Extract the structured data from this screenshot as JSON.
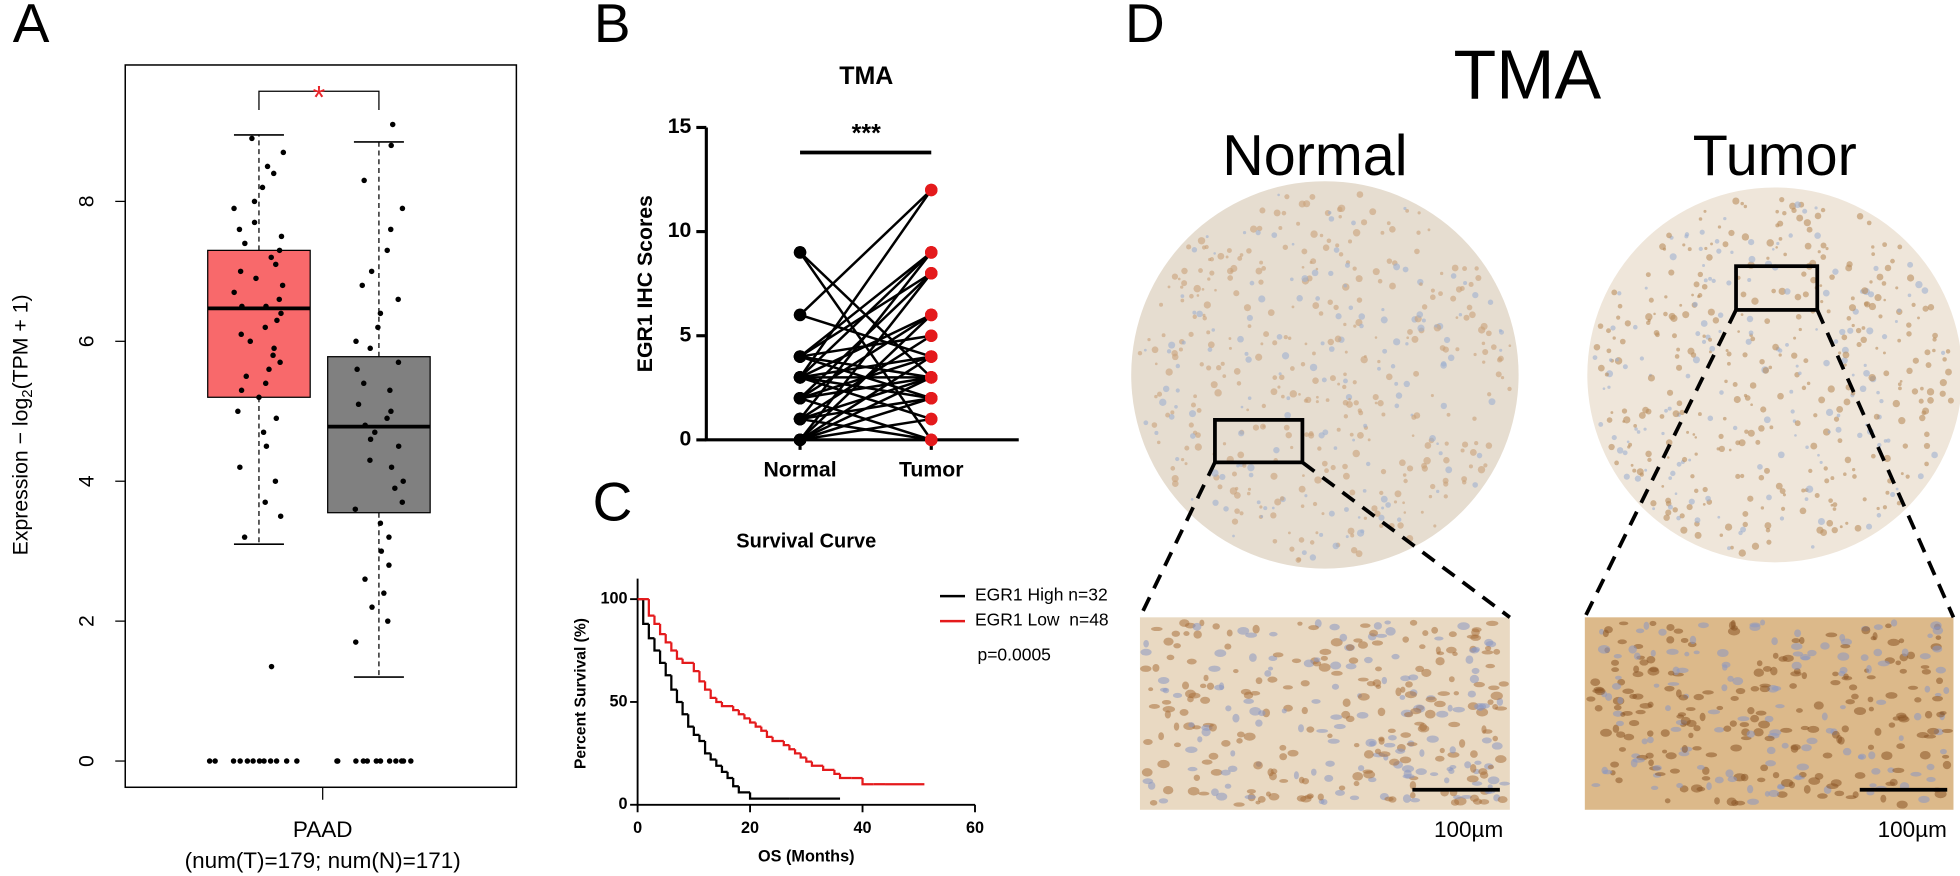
{
  "panels": [
    "A",
    "B",
    "C",
    "D"
  ],
  "chart_data": [
    {
      "type": "box",
      "ylabel": [
        "Expression − log",
        "2",
        "(TPM + 1)"
      ],
      "xlabel": [
        "PAAD",
        "(num(T)=179; num(N)=171)"
      ],
      "ylim": [
        -0.375,
        9.95
      ],
      "yticks": [
        0,
        2,
        4,
        6,
        8
      ],
      "annotation": {
        "text": "*",
        "color": "#e8262b"
      },
      "boxes": [
        {
          "color": "#f8696b",
          "whislo": 3.1,
          "q1": 5.2,
          "med": 6.47,
          "q3": 7.3,
          "whishi": 8.95,
          "points": [
            8.9,
            8.7,
            8.5,
            8.4,
            8.2,
            8.0,
            7.9,
            7.7,
            7.6,
            7.5,
            7.4,
            7.3,
            7.2,
            7.1,
            7.0,
            6.9,
            6.8,
            6.7,
            6.6,
            6.5,
            6.5,
            6.4,
            6.3,
            6.2,
            6.1,
            6.0,
            5.9,
            5.8,
            5.7,
            5.6,
            5.5,
            5.4,
            5.3,
            5.2,
            5.0,
            4.9,
            4.7,
            4.5,
            4.2,
            4.0,
            3.7,
            3.5,
            3.2,
            1.35,
            0,
            0,
            0,
            0,
            0,
            0,
            0,
            0,
            0,
            0,
            0,
            0
          ]
        },
        {
          "color": "#808080",
          "whislo": 1.2,
          "q1": 3.55,
          "med": 4.78,
          "q3": 5.78,
          "whishi": 8.85,
          "points": [
            9.1,
            8.8,
            8.3,
            7.9,
            7.6,
            7.3,
            7.0,
            6.8,
            6.6,
            6.4,
            6.2,
            6.0,
            5.9,
            5.7,
            5.6,
            5.4,
            5.3,
            5.1,
            5.0,
            4.9,
            4.8,
            4.7,
            4.6,
            4.5,
            4.3,
            4.2,
            4.0,
            3.9,
            3.7,
            3.6,
            3.4,
            3.2,
            3.0,
            2.8,
            2.6,
            2.4,
            2.2,
            2.0,
            1.7,
            0,
            0,
            0,
            0,
            0,
            0,
            0,
            0,
            0,
            0,
            0,
            0
          ]
        }
      ]
    },
    {
      "type": "paired",
      "title": "TMA",
      "ylabel": "EGR1 IHC Scores",
      "categories": [
        "Normal",
        "Tumor"
      ],
      "colors": [
        "#000000",
        "#e41a1c"
      ],
      "ylim": [
        0,
        15
      ],
      "yticks": [
        0,
        5,
        10,
        15
      ],
      "annotation": "***",
      "pairs": [
        [
          9,
          0
        ],
        [
          9,
          3
        ],
        [
          6,
          12
        ],
        [
          6,
          4
        ],
        [
          4,
          9
        ],
        [
          4,
          2
        ],
        [
          4,
          8
        ],
        [
          4,
          5
        ],
        [
          3,
          6
        ],
        [
          3,
          3
        ],
        [
          3,
          1
        ],
        [
          3,
          12
        ],
        [
          3,
          4
        ],
        [
          3,
          2
        ],
        [
          2,
          8
        ],
        [
          2,
          3
        ],
        [
          2,
          6
        ],
        [
          2,
          0
        ],
        [
          2,
          4
        ],
        [
          1,
          9
        ],
        [
          1,
          3
        ],
        [
          1,
          5
        ],
        [
          1,
          2
        ],
        [
          1,
          0
        ],
        [
          0,
          8
        ],
        [
          0,
          4
        ],
        [
          0,
          6
        ],
        [
          0,
          2
        ],
        [
          0,
          1
        ],
        [
          0,
          3
        ],
        [
          4,
          3
        ],
        [
          3,
          9
        ]
      ]
    },
    {
      "type": "step",
      "title": "Survival Curve",
      "xlabel": "OS (Months)",
      "ylabel": "Percent Survival (%)",
      "xlim": [
        0,
        60
      ],
      "xticks": [
        0,
        20,
        40,
        60
      ],
      "ylim": [
        0,
        110
      ],
      "yticks": [
        0,
        50,
        100
      ],
      "annotation": "p=0.0005",
      "series": [
        {
          "name": "EGR1 High n=32",
          "color": "#000000",
          "x": [
            0,
            1,
            2,
            3,
            4,
            5,
            6,
            7,
            8,
            9,
            10,
            11,
            12,
            13,
            14,
            15,
            16,
            17,
            18,
            20,
            27,
            36
          ],
          "values": [
            100,
            88,
            81,
            75,
            69,
            63,
            56,
            50,
            44,
            38,
            34,
            31,
            25,
            22,
            19,
            16,
            13,
            9,
            6,
            3,
            3,
            3
          ]
        },
        {
          "name": "EGR1 Low  n=48",
          "color": "#e41a1c",
          "x": [
            0,
            2,
            3,
            4,
            5,
            6,
            7,
            8,
            10,
            11,
            12,
            13,
            14,
            15,
            17,
            18,
            19,
            20,
            21,
            22,
            23,
            24,
            26,
            27,
            28,
            29,
            30,
            31,
            33,
            35,
            36,
            38,
            40,
            42,
            44,
            51
          ],
          "values": [
            100,
            92,
            88,
            83,
            79,
            75,
            71,
            69,
            65,
            60,
            56,
            52,
            50,
            48,
            46,
            44,
            42,
            40,
            38,
            36,
            33,
            31,
            29,
            27,
            25,
            23,
            21,
            19,
            17,
            15,
            13,
            13,
            10,
            10,
            10,
            10
          ]
        }
      ]
    }
  ],
  "figure_d": {
    "title": "TMA",
    "columns": [
      "Normal",
      "Tumor"
    ],
    "scale_bars": [
      "100µm",
      "100µm"
    ]
  }
}
